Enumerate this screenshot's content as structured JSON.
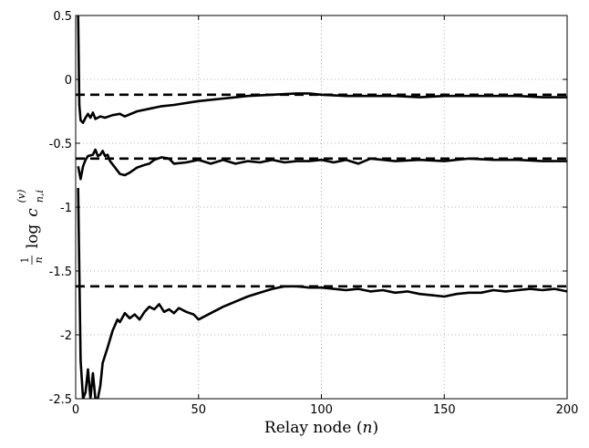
{
  "chart_data": {
    "type": "line",
    "title": "",
    "xlabel": "Relay node (n)",
    "ylabel": "(1/n) log c_{n,i}^{(v)}",
    "ylabel_parts": {
      "frac_num": "1",
      "frac_den": "n",
      "func": "log",
      "var": "c",
      "superscript": "(v)",
      "subscript": "n,i"
    },
    "xlim": [
      0,
      200
    ],
    "ylim": [
      -2.5,
      0.5
    ],
    "xticks": [
      0,
      50,
      100,
      150,
      200
    ],
    "xtick_labels": [
      "0",
      "50",
      "100",
      "150",
      "200"
    ],
    "yticks": [
      0.5,
      0,
      -0.5,
      -1,
      -1.5,
      -2,
      -2.5
    ],
    "ytick_labels": [
      "0.5",
      "0",
      "-0.5",
      "-1",
      "-1.5",
      "-2",
      "-2.5"
    ],
    "grid": true,
    "grid_style": "dotted",
    "line_color": "#000000",
    "series": [
      {
        "style": "solid",
        "points": [
          [
            1,
            0.5
          ],
          [
            1.5,
            -0.2
          ],
          [
            2,
            -0.32
          ],
          [
            3,
            -0.34
          ],
          [
            4,
            -0.3
          ],
          [
            5,
            -0.27
          ],
          [
            6,
            -0.3
          ],
          [
            7,
            -0.26
          ],
          [
            8,
            -0.31
          ],
          [
            10,
            -0.29
          ],
          [
            12,
            -0.3
          ],
          [
            15,
            -0.28
          ],
          [
            18,
            -0.27
          ],
          [
            20,
            -0.29
          ],
          [
            25,
            -0.25
          ],
          [
            30,
            -0.23
          ],
          [
            35,
            -0.21
          ],
          [
            40,
            -0.2
          ],
          [
            50,
            -0.17
          ],
          [
            60,
            -0.15
          ],
          [
            70,
            -0.13
          ],
          [
            80,
            -0.12
          ],
          [
            90,
            -0.11
          ],
          [
            95,
            -0.11
          ],
          [
            100,
            -0.12
          ],
          [
            110,
            -0.13
          ],
          [
            120,
            -0.13
          ],
          [
            130,
            -0.13
          ],
          [
            140,
            -0.14
          ],
          [
            150,
            -0.13
          ],
          [
            160,
            -0.13
          ],
          [
            170,
            -0.13
          ],
          [
            180,
            -0.13
          ],
          [
            190,
            -0.14
          ],
          [
            200,
            -0.14
          ]
        ]
      },
      {
        "style": "solid",
        "points": [
          [
            1,
            -0.68
          ],
          [
            2,
            -0.78
          ],
          [
            3,
            -0.68
          ],
          [
            4,
            -0.63
          ],
          [
            5,
            -0.6
          ],
          [
            7,
            -0.59
          ],
          [
            8,
            -0.55
          ],
          [
            9,
            -0.6
          ],
          [
            10,
            -0.59
          ],
          [
            11,
            -0.56
          ],
          [
            12,
            -0.6
          ],
          [
            13,
            -0.59
          ],
          [
            14,
            -0.64
          ],
          [
            16,
            -0.69
          ],
          [
            18,
            -0.74
          ],
          [
            20,
            -0.75
          ],
          [
            22,
            -0.73
          ],
          [
            25,
            -0.69
          ],
          [
            28,
            -0.67
          ],
          [
            30,
            -0.66
          ],
          [
            32,
            -0.63
          ],
          [
            35,
            -0.61
          ],
          [
            38,
            -0.62
          ],
          [
            40,
            -0.66
          ],
          [
            45,
            -0.65
          ],
          [
            50,
            -0.63
          ],
          [
            55,
            -0.66
          ],
          [
            60,
            -0.63
          ],
          [
            65,
            -0.66
          ],
          [
            70,
            -0.64
          ],
          [
            75,
            -0.65
          ],
          [
            80,
            -0.63
          ],
          [
            85,
            -0.65
          ],
          [
            90,
            -0.64
          ],
          [
            95,
            -0.64
          ],
          [
            100,
            -0.63
          ],
          [
            105,
            -0.65
          ],
          [
            110,
            -0.63
          ],
          [
            115,
            -0.66
          ],
          [
            120,
            -0.62
          ],
          [
            130,
            -0.64
          ],
          [
            140,
            -0.63
          ],
          [
            150,
            -0.64
          ],
          [
            160,
            -0.62
          ],
          [
            170,
            -0.63
          ],
          [
            180,
            -0.63
          ],
          [
            190,
            -0.64
          ],
          [
            200,
            -0.64
          ]
        ]
      },
      {
        "style": "solid",
        "points": [
          [
            1,
            -0.85
          ],
          [
            1.5,
            -1.5
          ],
          [
            2,
            -2.2
          ],
          [
            3,
            -2.5
          ],
          [
            4,
            -2.45
          ],
          [
            5,
            -2.27
          ],
          [
            6,
            -2.5
          ],
          [
            7,
            -2.3
          ],
          [
            8,
            -2.5
          ],
          [
            9,
            -2.5
          ],
          [
            10,
            -2.4
          ],
          [
            11,
            -2.22
          ],
          [
            13,
            -2.1
          ],
          [
            15,
            -1.97
          ],
          [
            17,
            -1.88
          ],
          [
            18,
            -1.9
          ],
          [
            20,
            -1.83
          ],
          [
            22,
            -1.87
          ],
          [
            24,
            -1.84
          ],
          [
            26,
            -1.88
          ],
          [
            28,
            -1.82
          ],
          [
            30,
            -1.78
          ],
          [
            32,
            -1.8
          ],
          [
            34,
            -1.76
          ],
          [
            36,
            -1.82
          ],
          [
            38,
            -1.8
          ],
          [
            40,
            -1.83
          ],
          [
            42,
            -1.79
          ],
          [
            45,
            -1.82
          ],
          [
            48,
            -1.84
          ],
          [
            50,
            -1.88
          ],
          [
            55,
            -1.83
          ],
          [
            60,
            -1.78
          ],
          [
            65,
            -1.74
          ],
          [
            70,
            -1.7
          ],
          [
            75,
            -1.67
          ],
          [
            80,
            -1.64
          ],
          [
            85,
            -1.62
          ],
          [
            90,
            -1.62
          ],
          [
            95,
            -1.63
          ],
          [
            100,
            -1.63
          ],
          [
            105,
            -1.64
          ],
          [
            110,
            -1.65
          ],
          [
            115,
            -1.64
          ],
          [
            120,
            -1.66
          ],
          [
            125,
            -1.65
          ],
          [
            130,
            -1.67
          ],
          [
            135,
            -1.66
          ],
          [
            140,
            -1.68
          ],
          [
            145,
            -1.69
          ],
          [
            150,
            -1.7
          ],
          [
            155,
            -1.68
          ],
          [
            160,
            -1.67
          ],
          [
            165,
            -1.67
          ],
          [
            170,
            -1.65
          ],
          [
            175,
            -1.66
          ],
          [
            180,
            -1.65
          ],
          [
            185,
            -1.64
          ],
          [
            190,
            -1.65
          ],
          [
            195,
            -1.64
          ],
          [
            200,
            -1.66
          ]
        ]
      },
      {
        "style": "dashed",
        "points": [
          [
            0,
            -0.12
          ],
          [
            200,
            -0.12
          ]
        ]
      },
      {
        "style": "dashed",
        "points": [
          [
            0,
            -0.62
          ],
          [
            200,
            -0.62
          ]
        ]
      },
      {
        "style": "dashed",
        "points": [
          [
            0,
            -1.62
          ],
          [
            200,
            -1.62
          ]
        ]
      }
    ]
  }
}
